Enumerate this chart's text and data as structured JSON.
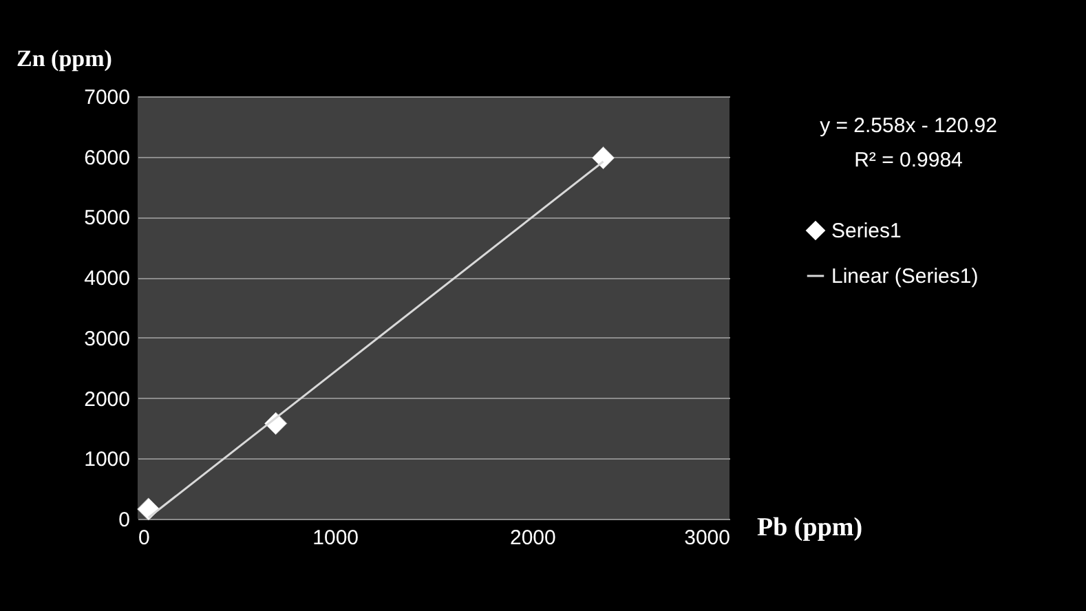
{
  "chart_data": {
    "type": "scatter",
    "xlabel": "Pb (ppm)",
    "ylabel": "Zn (ppm)",
    "xlim": [
      0,
      3000
    ],
    "xticks": [
      0,
      1000,
      2000,
      3000
    ],
    "ylim": [
      0,
      7000
    ],
    "yticks": [
      0,
      1000,
      2000,
      3000,
      4000,
      5000,
      6000,
      7000
    ],
    "grid": "y",
    "legend": "right",
    "series": [
      {
        "name": "Series1",
        "marker": "diamond",
        "color": "#ffffff",
        "x": [
          55,
          700,
          2360
        ],
        "values": [
          160,
          1580,
          5980
        ]
      },
      {
        "name": "Linear (Series1)",
        "type": "line",
        "marker": "none",
        "line_style": "solid",
        "color": "#d9d9d9",
        "x": [
          55,
          2360
        ],
        "values": [
          20,
          5920
        ]
      }
    ],
    "annotations": [
      "y = 2.558x - 120.92",
      "R² = 0.9984"
    ]
  }
}
